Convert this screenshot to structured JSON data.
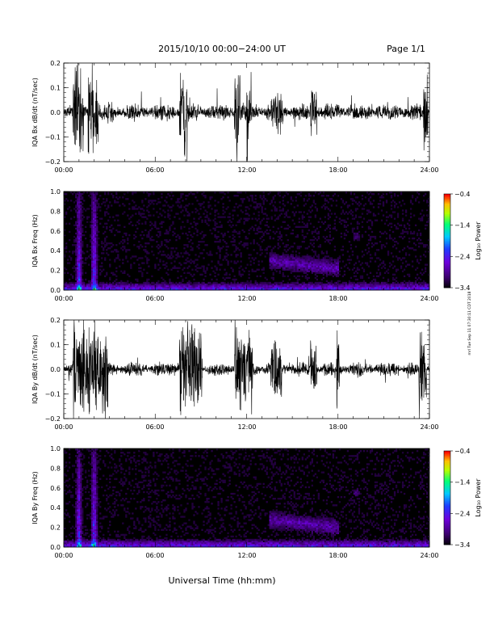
{
  "header": {
    "title": "2015/10/10  00:00−24:00 UT",
    "page": "Page 1/1"
  },
  "side_stamp": "mrl Tue Sep 11 07:30:11 CDT 2018",
  "chart_data": [
    {
      "type": "line",
      "ylabel": "IQA Bx dB/dt (nT/sec)",
      "xlim_hours": [
        0,
        24
      ],
      "ylim": [
        -0.2,
        0.2
      ],
      "x_ticklabels": [
        "00:00",
        "06:00",
        "12:00",
        "18:00",
        "24:00"
      ],
      "y_ticklabels": [
        "−0.2",
        "−0.1",
        "0.0",
        "0.1",
        "0.2"
      ],
      "baseline_amplitude": 0.03,
      "bursts": [
        {
          "t_start": 0.6,
          "t_end": 1.3,
          "amplitude": 0.22
        },
        {
          "t_start": 1.6,
          "t_end": 2.3,
          "amplitude": 0.22
        },
        {
          "t_start": 2.9,
          "t_end": 3.2,
          "amplitude": 0.06
        },
        {
          "t_start": 7.6,
          "t_end": 8.1,
          "amplitude": 0.2
        },
        {
          "t_start": 11.2,
          "t_end": 11.6,
          "amplitude": 0.2
        },
        {
          "t_start": 12.0,
          "t_end": 12.3,
          "amplitude": 0.2
        },
        {
          "t_start": 13.6,
          "t_end": 14.4,
          "amplitude": 0.1
        },
        {
          "t_start": 16.2,
          "t_end": 16.6,
          "amplitude": 0.12
        },
        {
          "t_start": 23.6,
          "t_end": 23.9,
          "amplitude": 0.2
        }
      ]
    },
    {
      "type": "heatmap",
      "ylabel": "IQA Bx Freq (Hz)",
      "xlim_hours": [
        0,
        24
      ],
      "ylim": [
        0.0,
        1.0
      ],
      "x_ticklabels": [
        "00:00",
        "06:00",
        "12:00",
        "18:00",
        "24:00"
      ],
      "y_ticklabels": [
        "0.0",
        "0.2",
        "0.4",
        "0.6",
        "0.8",
        "1.0"
      ],
      "colorbar": {
        "label": "Log₁₀ Power",
        "ticks": [
          "−0.4",
          "−1.4",
          "−2.4",
          "−3.4"
        ],
        "range": [
          -3.4,
          -0.4
        ]
      },
      "features": [
        {
          "t": 1.0,
          "f_top": 1.0,
          "level": -2.0
        },
        {
          "t": 2.0,
          "f_top": 1.0,
          "level": -1.8
        },
        {
          "t_start": 13.5,
          "t_end": 18.0,
          "f_center": 0.3,
          "level": -2.6
        },
        {
          "t": 19.2,
          "f_center": 0.55,
          "level": -2.9
        }
      ]
    },
    {
      "type": "line",
      "ylabel": "IQA By dB/dt (nT/sec)",
      "xlim_hours": [
        0,
        24
      ],
      "ylim": [
        -0.2,
        0.2
      ],
      "x_ticklabels": [
        "00:00",
        "06:00",
        "12:00",
        "18:00",
        "24:00"
      ],
      "y_ticklabels": [
        "−0.2",
        "−0.1",
        "0.0",
        "0.1",
        "0.2"
      ],
      "baseline_amplitude": 0.025,
      "bursts": [
        {
          "t_start": 0.6,
          "t_end": 2.9,
          "amplitude": 0.22
        },
        {
          "t_start": 7.6,
          "t_end": 9.1,
          "amplitude": 0.2
        },
        {
          "t_start": 11.2,
          "t_end": 12.4,
          "amplitude": 0.2
        },
        {
          "t_start": 13.6,
          "t_end": 14.3,
          "amplitude": 0.16
        },
        {
          "t_start": 16.2,
          "t_end": 16.6,
          "amplitude": 0.15
        },
        {
          "t_start": 17.9,
          "t_end": 18.1,
          "amplitude": 0.2
        },
        {
          "t_start": 23.3,
          "t_end": 23.8,
          "amplitude": 0.22
        }
      ]
    },
    {
      "type": "heatmap",
      "ylabel": "IQA By Freq (Hz)",
      "xlim_hours": [
        0,
        24
      ],
      "ylim": [
        0.0,
        1.0
      ],
      "x_ticklabels": [
        "00:00",
        "06:00",
        "12:00",
        "18:00",
        "24:00"
      ],
      "y_ticklabels": [
        "0.0",
        "0.2",
        "0.4",
        "0.6",
        "0.8",
        "1.0"
      ],
      "colorbar": {
        "label": "Log₁₀ Power",
        "ticks": [
          "−0.4",
          "−1.4",
          "−2.4",
          "−3.4"
        ],
        "range": [
          -3.4,
          -0.4
        ]
      },
      "features": [
        {
          "t": 1.0,
          "f_top": 1.0,
          "level": -2.0
        },
        {
          "t": 2.0,
          "f_top": 1.0,
          "level": -1.8
        },
        {
          "t_start": 13.5,
          "t_end": 18.0,
          "f_center": 0.28,
          "level": -2.6
        },
        {
          "t": 19.2,
          "f_center": 0.55,
          "level": -2.9
        }
      ]
    }
  ],
  "xlabel": "Universal Time (hh:mm)"
}
